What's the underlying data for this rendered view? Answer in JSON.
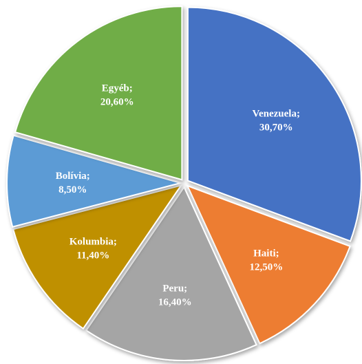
{
  "chart_data": {
    "type": "pie",
    "title": "",
    "slices": [
      {
        "label": "Venezuela",
        "value": 30.7,
        "value_text": "30,70%",
        "color": "#4472C4"
      },
      {
        "label": "Haiti",
        "value": 12.5,
        "value_text": "12,50%",
        "color": "#ED7D31"
      },
      {
        "label": "Peru",
        "value": 16.4,
        "value_text": "16,40%",
        "color": "#A5A5A5"
      },
      {
        "label": "Kolumbia",
        "value": 11.4,
        "value_text": "11,40%",
        "color": "#BF9000"
      },
      {
        "label": "Bolívia",
        "value": 8.5,
        "value_text": "8,50%",
        "color": "#5B9BD5"
      },
      {
        "label": "Egyéb",
        "value": 20.6,
        "value_text": "20,60%",
        "color": "#70AD47"
      }
    ],
    "start_angle_deg": 0,
    "direction": "clockwise",
    "exploded": true,
    "legend": "none"
  }
}
